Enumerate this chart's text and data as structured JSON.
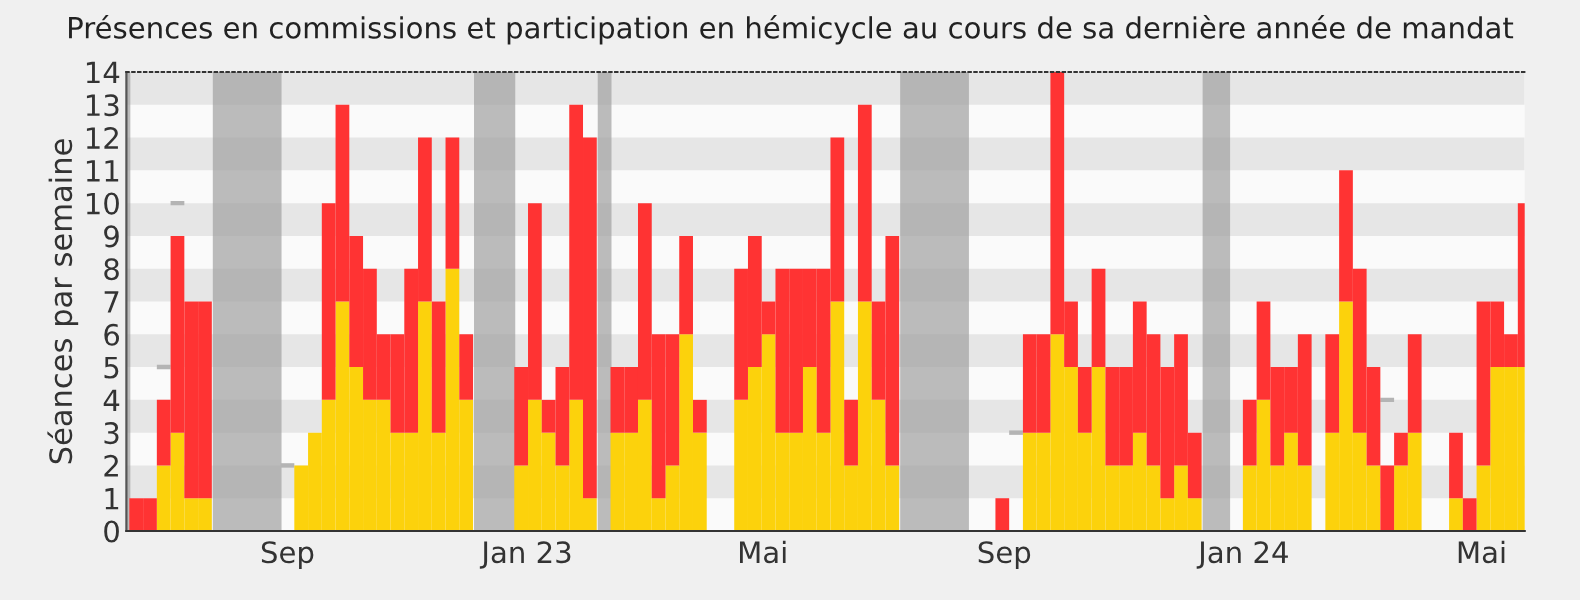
{
  "chart_data": {
    "type": "bar",
    "stacked": true,
    "title": "Présences en commissions et participation en hémicycle au cours de sa dernière année de mandat",
    "ylabel": "Séances par semaine",
    "x": [
      "2022-06-16",
      "2022-06-23",
      "2022-06-30",
      "2022-07-07",
      "2022-07-14",
      "2022-07-21",
      "2022-07-28",
      "2022-08-04",
      "2022-08-11",
      "2022-08-18",
      "2022-08-25",
      "2022-09-01",
      "2022-09-08",
      "2022-09-15",
      "2022-09-22",
      "2022-09-29",
      "2022-10-06",
      "2022-10-13",
      "2022-10-20",
      "2022-10-27",
      "2022-11-03",
      "2022-11-10",
      "2022-11-17",
      "2022-11-24",
      "2022-12-01",
      "2022-12-08",
      "2022-12-15",
      "2022-12-22",
      "2022-12-29",
      "2023-01-05",
      "2023-01-12",
      "2023-01-19",
      "2023-01-26",
      "2023-02-02",
      "2023-02-09",
      "2023-02-16",
      "2023-02-23",
      "2023-03-02",
      "2023-03-09",
      "2023-03-16",
      "2023-03-23",
      "2023-03-30",
      "2023-04-06",
      "2023-04-13",
      "2023-04-20",
      "2023-04-27",
      "2023-05-04",
      "2023-05-11",
      "2023-05-18",
      "2023-05-25",
      "2023-06-01",
      "2023-06-08",
      "2023-06-15",
      "2023-06-22",
      "2023-06-29",
      "2023-07-06",
      "2023-07-13",
      "2023-07-20",
      "2023-07-27",
      "2023-08-03",
      "2023-08-10",
      "2023-08-17",
      "2023-08-24",
      "2023-08-31",
      "2023-09-07",
      "2023-09-14",
      "2023-09-21",
      "2023-09-28",
      "2023-10-05",
      "2023-10-12",
      "2023-10-19",
      "2023-10-26",
      "2023-11-02",
      "2023-11-09",
      "2023-11-16",
      "2023-11-23",
      "2023-11-30",
      "2023-12-07",
      "2023-12-14",
      "2023-12-21",
      "2023-12-28",
      "2024-01-04",
      "2024-01-11",
      "2024-01-18",
      "2024-01-25",
      "2024-02-01",
      "2024-02-08",
      "2024-02-15",
      "2024-02-22",
      "2024-02-29",
      "2024-03-07",
      "2024-03-14",
      "2024-03-21",
      "2024-03-28",
      "2024-04-04",
      "2024-04-11",
      "2024-04-18",
      "2024-04-25",
      "2024-05-02",
      "2024-05-09",
      "2024-05-16",
      "2024-05-23"
    ],
    "series": [
      {
        "color": "#fcd20c",
        "values": [
          null,
          null,
          2,
          3,
          1,
          1,
          null,
          null,
          null,
          null,
          null,
          null,
          2,
          3,
          4,
          7,
          5,
          4,
          4,
          3,
          3,
          7,
          3,
          8,
          4,
          null,
          null,
          null,
          2,
          4,
          3,
          2,
          4,
          1,
          null,
          3,
          3,
          4,
          1,
          2,
          6,
          3,
          null,
          null,
          4,
          5,
          6,
          3,
          3,
          5,
          3,
          7,
          2,
          7,
          4,
          2,
          null,
          null,
          null,
          null,
          null,
          null,
          null,
          null,
          null,
          3,
          3,
          6,
          5,
          3,
          5,
          2,
          2,
          3,
          2,
          1,
          2,
          1,
          null,
          null,
          null,
          2,
          4,
          2,
          3,
          2,
          null,
          3,
          7,
          3,
          2,
          null,
          2,
          3,
          null,
          null,
          1,
          null,
          2,
          5,
          5,
          5
        ]
      },
      {
        "color": "#ff3333",
        "values": [
          1,
          1,
          2,
          6,
          6,
          6,
          null,
          null,
          null,
          null,
          null,
          null,
          0,
          0,
          6,
          6,
          4,
          4,
          2,
          3,
          5,
          5,
          4,
          4,
          2,
          null,
          null,
          null,
          3,
          6,
          1,
          3,
          9,
          11,
          null,
          2,
          2,
          6,
          5,
          4,
          3,
          1,
          null,
          null,
          4,
          4,
          1,
          5,
          5,
          3,
          5,
          5,
          2,
          6,
          3,
          7,
          null,
          null,
          null,
          null,
          null,
          null,
          null,
          1,
          null,
          3,
          3,
          8,
          2,
          2,
          3,
          3,
          3,
          4,
          4,
          4,
          4,
          2,
          null,
          null,
          null,
          2,
          3,
          3,
          2,
          4,
          null,
          3,
          4,
          5,
          3,
          2,
          1,
          3,
          null,
          null,
          2,
          1,
          5,
          2,
          1,
          5
        ]
      },
      {
        "type": "step",
        "color": "#b4b4b4",
        "values": [
          null,
          null,
          5,
          10,
          null,
          null,
          null,
          null,
          null,
          null,
          null,
          2,
          null,
          null,
          null,
          null,
          null,
          null,
          null,
          null,
          null,
          null,
          null,
          null,
          null,
          null,
          null,
          null,
          null,
          null,
          null,
          null,
          null,
          null,
          null,
          null,
          null,
          null,
          null,
          null,
          null,
          null,
          null,
          null,
          null,
          null,
          null,
          null,
          null,
          null,
          null,
          null,
          null,
          null,
          null,
          null,
          null,
          null,
          null,
          null,
          null,
          null,
          null,
          null,
          3,
          null,
          null,
          null,
          null,
          null,
          null,
          null,
          null,
          null,
          null,
          null,
          null,
          null,
          null,
          null,
          null,
          null,
          null,
          null,
          null,
          null,
          null,
          null,
          null,
          null,
          null,
          4,
          null,
          null,
          null,
          null,
          null,
          null,
          null,
          null,
          null,
          null
        ]
      }
    ],
    "xlim": [
      "2022-06-11",
      "2024-05-23"
    ],
    "xticks": [
      {
        "value": "2022-09-01",
        "label": "Sep"
      },
      {
        "value": "2023-01-01",
        "label": "Jan 23"
      },
      {
        "value": "2023-05-01",
        "label": "Mai"
      },
      {
        "value": "2023-09-01",
        "label": "Sep"
      },
      {
        "value": "2024-01-01",
        "label": "Jan 24"
      },
      {
        "value": "2024-05-01",
        "label": "Mai"
      }
    ],
    "ylim": [
      0,
      14
    ],
    "yticks": [
      0,
      1,
      2,
      3,
      4,
      5,
      6,
      7,
      8,
      9,
      10,
      11,
      12,
      13,
      14
    ],
    "bands": [
      {
        "axis": "y",
        "from": 1,
        "to": 2,
        "color": "#e6e6e6"
      },
      {
        "axis": "y",
        "from": 3,
        "to": 4,
        "color": "#e6e6e6"
      },
      {
        "axis": "y",
        "from": 5,
        "to": 6,
        "color": "#e6e6e6"
      },
      {
        "axis": "y",
        "from": 7,
        "to": 8,
        "color": "#e6e6e6"
      },
      {
        "axis": "y",
        "from": 9,
        "to": 10,
        "color": "#e6e6e6"
      },
      {
        "axis": "y",
        "from": 11,
        "to": 12,
        "color": "#e6e6e6"
      },
      {
        "axis": "y",
        "from": 13,
        "to": 14,
        "color": "#e6e6e6"
      },
      {
        "axis": "x",
        "from": "2022-06-11",
        "to": "2022-06-13",
        "color": "#a0a0a0"
      },
      {
        "axis": "x",
        "from": "2022-07-25",
        "to": "2022-08-29",
        "color": "#a0a0a0"
      },
      {
        "axis": "x",
        "from": "2022-12-05",
        "to": "2022-12-26",
        "color": "#a0a0a0"
      },
      {
        "axis": "x",
        "from": "2023-02-06",
        "to": "2023-02-13",
        "color": "#a0a0a0"
      },
      {
        "axis": "x",
        "from": "2023-07-10",
        "to": "2023-08-14",
        "color": "#a0a0a0"
      },
      {
        "axis": "x",
        "from": "2023-12-11",
        "to": "2023-12-25",
        "color": "#a0a0a0"
      }
    ]
  }
}
